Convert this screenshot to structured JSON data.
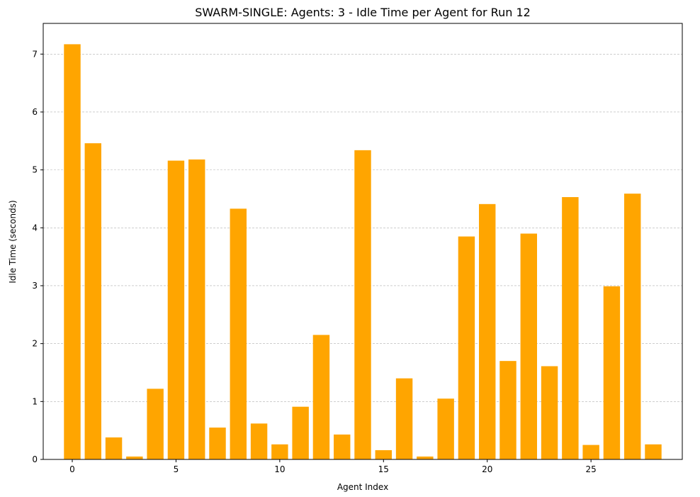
{
  "chart_data": {
    "type": "bar",
    "title": "SWARM-SINGLE: Agents: 3 - Idle Time per Agent for Run 12",
    "xlabel": "Agent Index",
    "ylabel": "Idle Time (seconds)",
    "x": [
      0,
      1,
      2,
      3,
      4,
      5,
      6,
      7,
      8,
      9,
      10,
      11,
      12,
      13,
      14,
      15,
      16,
      17,
      18,
      19,
      20,
      21,
      22,
      23,
      24,
      25,
      26,
      27,
      28
    ],
    "values": [
      7.17,
      5.46,
      0.38,
      0.05,
      1.22,
      5.16,
      5.18,
      0.55,
      4.33,
      0.62,
      0.26,
      0.91,
      2.15,
      0.43,
      5.34,
      0.16,
      1.4,
      0.05,
      1.05,
      3.85,
      4.41,
      1.7,
      3.9,
      1.61,
      4.53,
      0.25,
      2.99,
      4.59,
      0.26
    ],
    "xticks": [
      0,
      5,
      10,
      15,
      20,
      25
    ],
    "yticks": [
      0,
      1,
      2,
      3,
      4,
      5,
      6,
      7
    ],
    "xlim": [
      -1.4,
      29.4
    ],
    "ylim": [
      0,
      7.53
    ],
    "bar_color": "#FFA500",
    "grid": "y-axis dashed"
  }
}
